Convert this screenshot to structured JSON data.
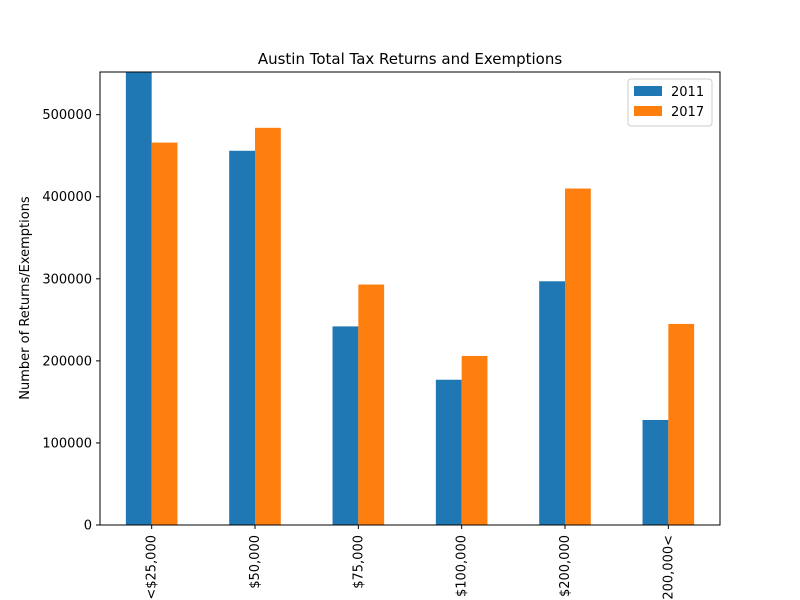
{
  "chart_data": {
    "type": "bar",
    "title": "Austin Total Tax Returns and Exemptions",
    "xlabel": "",
    "ylabel": "Number of Returns/Exemptions",
    "categories": [
      "<$25,000",
      "$50,000",
      "$75,000",
      "$100,000",
      "$200,000",
      "$200,000<"
    ],
    "series": [
      {
        "name": "2011",
        "color": "#1f77b4",
        "values": [
          552000,
          456000,
          242000,
          177000,
          297000,
          128000
        ]
      },
      {
        "name": "2017",
        "color": "#ff7f0e",
        "values": [
          466000,
          484000,
          293000,
          206000,
          410000,
          245000
        ]
      }
    ],
    "ylim": [
      0,
      552000
    ],
    "yticks": [
      0,
      100000,
      200000,
      300000,
      400000,
      500000
    ],
    "grid": false,
    "legend_position": "top-right"
  }
}
